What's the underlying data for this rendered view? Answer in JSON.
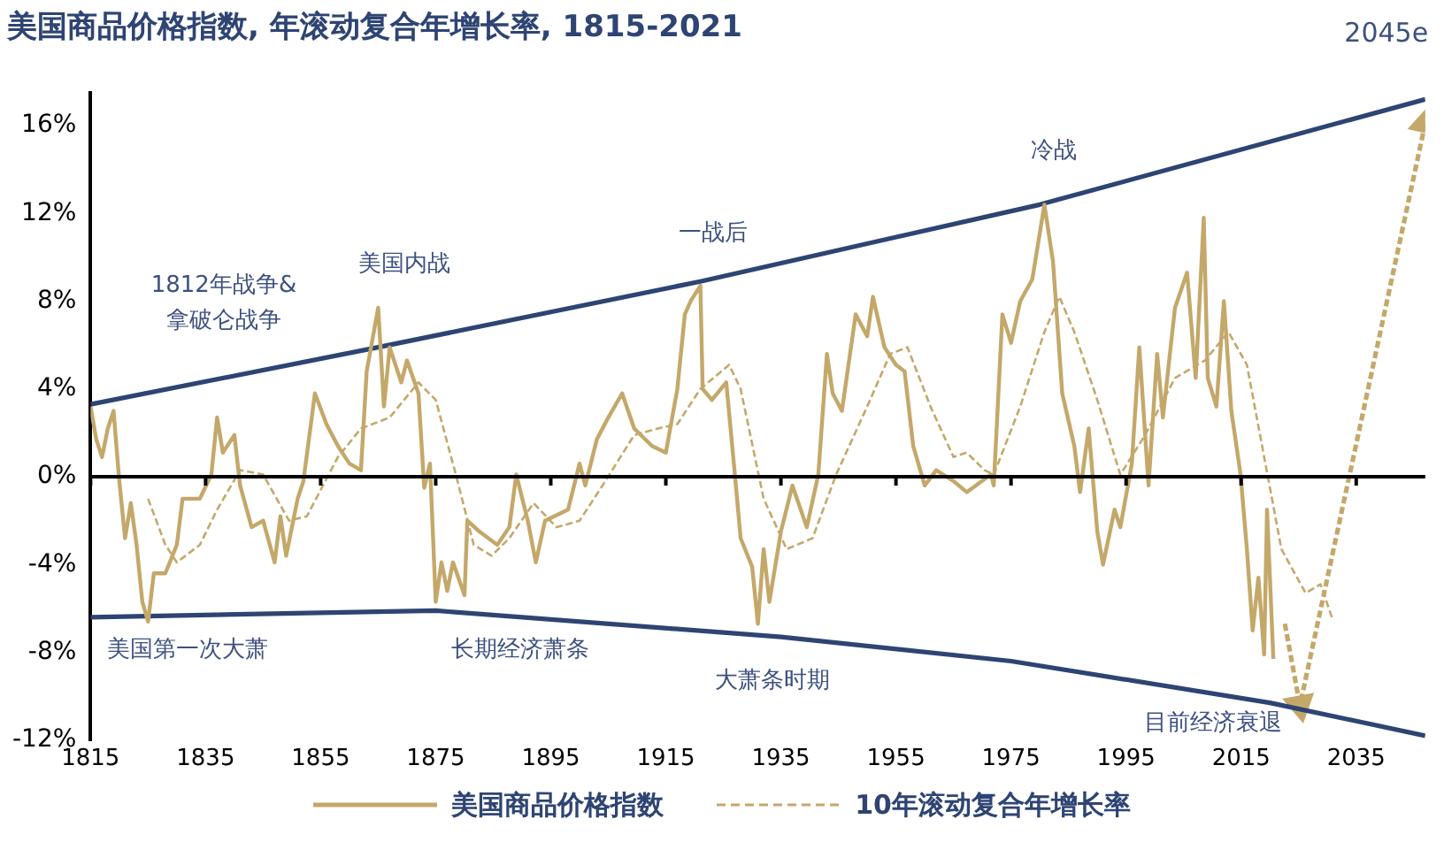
{
  "chart_data": {
    "type": "line",
    "title": "美国商品价格指数, 年滚动复合年增长率, 1815-2021",
    "xlim": [
      1815,
      2047
    ],
    "xticks": [
      1815,
      1835,
      1855,
      1875,
      1895,
      1915,
      1935,
      1955,
      1975,
      1995,
      2015,
      2035
    ],
    "ylim": [
      -12,
      17.5
    ],
    "yticks": [
      {
        "value": -12,
        "label": "-12%"
      },
      {
        "value": -8,
        "label": "-8%"
      },
      {
        "value": -4,
        "label": "-4%"
      },
      {
        "value": 0,
        "label": "0%"
      },
      {
        "value": 4,
        "label": "4%"
      },
      {
        "value": 8,
        "label": "8%"
      },
      {
        "value": 12,
        "label": "12%"
      },
      {
        "value": 16,
        "label": "16%"
      }
    ],
    "grid": false,
    "legend": "bottom",
    "ref_lines": [
      {
        "axis": "y",
        "value": 0,
        "color": "#000000"
      }
    ],
    "series": [
      {
        "name": "美国商品价格指数",
        "color": "#c4a86a",
        "line_style": "solid",
        "x": [
          1815,
          1816,
          1817,
          1818,
          1819,
          1820,
          1821,
          1822,
          1823,
          1824,
          1825,
          1826,
          1828,
          1830,
          1831,
          1834,
          1836,
          1837,
          1838,
          1840,
          1841,
          1843,
          1845,
          1847,
          1848,
          1849,
          1851,
          1852,
          1854,
          1856,
          1858,
          1860,
          1862,
          1863,
          1865,
          1866,
          1867,
          1869,
          1870,
          1872,
          1873,
          1874,
          1875,
          1876,
          1877,
          1878,
          1880,
          1880.5,
          1882.6,
          1885.7,
          1887.8,
          1889,
          1891,
          1892.4,
          1894,
          1898,
          1900,
          1901,
          1903,
          1905,
          1907.4,
          1909.5,
          1912.6,
          1915,
          1917,
          1918.3,
          1919.3,
          1921,
          1921.4,
          1923,
          1925.5,
          1927,
          1928,
          1930,
          1931,
          1932,
          1933,
          1935,
          1937,
          1939.5,
          1941.5,
          1943,
          1944,
          1945.6,
          1948,
          1950,
          1951,
          1953,
          1955,
          1956.5,
          1958,
          1960,
          1962,
          1965,
          1967.3,
          1971.5,
          1972,
          1973.5,
          1975,
          1976.6,
          1978.7,
          1980.8,
          1982.3,
          1983.9,
          1986,
          1987,
          1988.5,
          1990,
          1991,
          1993,
          1994,
          1996,
          1997.3,
          1998.9,
          2000.4,
          2001.4,
          2003.5,
          2005.6,
          2007.1,
          2008.5,
          2009.2,
          2010.7,
          2012,
          2013.3,
          2014.9,
          2016,
          2017,
          2018,
          2019,
          2019.5,
          2020.6
        ],
        "values": [
          3.2,
          1.7,
          0.9,
          2.2,
          3.0,
          -0.2,
          -2.8,
          -1.2,
          -3.1,
          -5.7,
          -6.6,
          -4.4,
          -4.4,
          -3.1,
          -1.0,
          -1.0,
          0.1,
          2.7,
          1.1,
          1.9,
          -0.4,
          -2.3,
          -2.0,
          -3.9,
          -1.8,
          -3.6,
          -1.0,
          -0.2,
          3.8,
          2.4,
          1.4,
          0.6,
          0.3,
          4.8,
          7.7,
          3.2,
          5.9,
          4.3,
          5.3,
          3.8,
          -0.5,
          0.6,
          -5.7,
          -3.9,
          -5.2,
          -3.9,
          -5.4,
          -2.0,
          -2.5,
          -3.1,
          -2.3,
          0.1,
          -2.0,
          -3.9,
          -2.0,
          -1.5,
          0.6,
          -0.4,
          1.7,
          2.7,
          3.8,
          2.2,
          1.4,
          1.1,
          4.0,
          7.4,
          8.0,
          8.7,
          4.0,
          3.5,
          4.3,
          0.1,
          -2.8,
          -4.1,
          -6.7,
          -3.3,
          -5.7,
          -2.5,
          -0.4,
          -2.3,
          0.1,
          5.6,
          3.8,
          3.0,
          7.4,
          6.4,
          8.2,
          5.9,
          5.1,
          4.8,
          1.4,
          -0.4,
          0.3,
          -0.2,
          -0.7,
          0.1,
          -0.4,
          7.4,
          6.1,
          8.0,
          9.0,
          12.4,
          9.8,
          3.8,
          1.4,
          -0.7,
          2.2,
          -2.5,
          -4.0,
          -1.5,
          -2.3,
          0.6,
          5.9,
          -0.4,
          5.6,
          2.7,
          7.7,
          9.3,
          4.5,
          11.8,
          4.5,
          3.2,
          8.0,
          3.0,
          0.1,
          -3.3,
          -7.0,
          -4.6,
          -8.1,
          -1.5,
          -8.3
        ]
      },
      {
        "name": "10年滚动复合年增长率",
        "color": "#c4a86a",
        "line_style": "dashed",
        "x": [
          1825,
          1828,
          1830,
          1834,
          1837,
          1841,
          1845,
          1849.5,
          1852.6,
          1858,
          1862,
          1867,
          1872,
          1875,
          1878.5,
          1881.6,
          1884.7,
          1887.8,
          1892,
          1896,
          1900,
          1904,
          1909.5,
          1913.6,
          1917,
          1921,
          1926,
          1928,
          1932,
          1936,
          1940.5,
          1944.6,
          1950,
          1954,
          1957,
          1961,
          1965,
          1967.3,
          1970.4,
          1972,
          1976.6,
          1980.8,
          1983.4,
          1986,
          1990,
          1994,
          1998.3,
          2003.5,
          2008.7,
          2012.8,
          2016,
          2019,
          2022,
          2026.2,
          2028.8,
          2030.9
        ],
        "values": [
          -1.0,
          -3.1,
          -3.9,
          -3.1,
          -1.5,
          0.3,
          0.1,
          -2.0,
          -1.8,
          0.9,
          2.2,
          2.7,
          4.3,
          3.5,
          0.1,
          -3.1,
          -3.6,
          -2.8,
          -1.2,
          -2.3,
          -2.0,
          -0.4,
          1.9,
          2.2,
          2.4,
          4.0,
          5.1,
          4.0,
          -1.0,
          -3.3,
          -2.8,
          0.1,
          3.2,
          5.6,
          5.9,
          3.2,
          0.9,
          1.1,
          0.3,
          0.1,
          3.2,
          6.6,
          8.2,
          6.6,
          3.5,
          0.1,
          1.9,
          4.5,
          5.3,
          6.6,
          5.1,
          0.9,
          -3.3,
          -5.3,
          -4.9,
          -6.5
        ]
      },
      {
        "color": "#2e4473",
        "line_style": "solid",
        "x": [
          1815,
          1865,
          1921,
          1980,
          2047
        ],
        "values": [
          3.3,
          5.9,
          8.9,
          12.4,
          17.2
        ]
      },
      {
        "color": "#2e4473",
        "line_style": "solid",
        "x": [
          1815,
          1875,
          1935,
          1975,
          2020,
          2047
        ],
        "values": [
          -6.4,
          -6.1,
          -7.3,
          -8.4,
          -10.3,
          -11.8
        ]
      },
      {
        "color": "#c4a86a",
        "line_style": "dashed",
        "marker": "triangle",
        "x": [
          2022.6,
          2025.2
        ],
        "values": [
          -6.7,
          -10.4
        ]
      },
      {
        "color": "#c4a86a",
        "line_style": "dashed",
        "marker": "triangle",
        "x": [
          2025.4,
          2047
        ],
        "values": [
          -10.2,
          16.1
        ]
      }
    ],
    "annotations": [
      "1812年战争&\n拿破仑战争",
      "美国内战",
      "一战后",
      "冷战",
      "美国第一次大萧",
      "长期经济萧条",
      "大萧条时期",
      "目前经济衰退",
      "2045e"
    ]
  }
}
